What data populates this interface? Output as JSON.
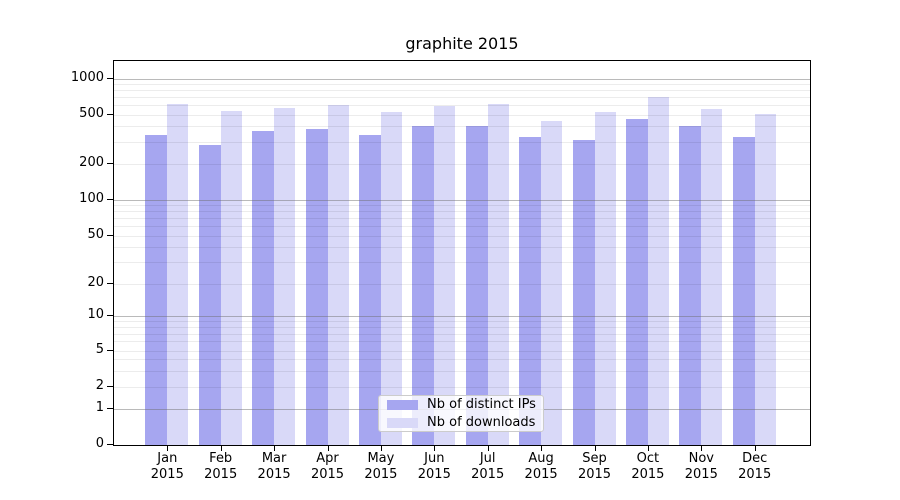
{
  "chart_data": {
    "type": "bar",
    "title": "graphite 2015",
    "categories": [
      "Jan",
      "Feb",
      "Mar",
      "Apr",
      "May",
      "Jun",
      "Jul",
      "Aug",
      "Sep",
      "Oct",
      "Nov",
      "Dec"
    ],
    "category_year": "2015",
    "series": [
      {
        "name": "Nb of distinct IPs",
        "color": "#a6a6f0",
        "values": [
          345,
          285,
          370,
          385,
          345,
          410,
          410,
          330,
          315,
          465,
          410,
          330
        ]
      },
      {
        "name": "Nb of downloads",
        "color": "#d9d9f8",
        "values": [
          620,
          545,
          575,
          610,
          525,
          600,
          620,
          450,
          525,
          710,
          565,
          505
        ]
      }
    ],
    "yscale": "symlog",
    "ylim": [
      0,
      1400
    ],
    "y_tick_labels": [
      0,
      1,
      2,
      5,
      10,
      20,
      50,
      100,
      200,
      500,
      1000
    ],
    "y_major_grid": [
      1,
      10,
      100,
      1000
    ],
    "y_minor_grid": [
      2,
      3,
      4,
      5,
      6,
      7,
      8,
      9,
      20,
      30,
      40,
      50,
      60,
      70,
      80,
      90,
      200,
      300,
      400,
      500,
      600,
      700,
      800,
      900
    ],
    "grid": true,
    "grid_major_color": "#b0b0b0",
    "grid_minor_color": "#ededed",
    "legend": {
      "position": "lower center",
      "labels": [
        "Nb of distinct IPs",
        "Nb of downloads"
      ]
    }
  }
}
